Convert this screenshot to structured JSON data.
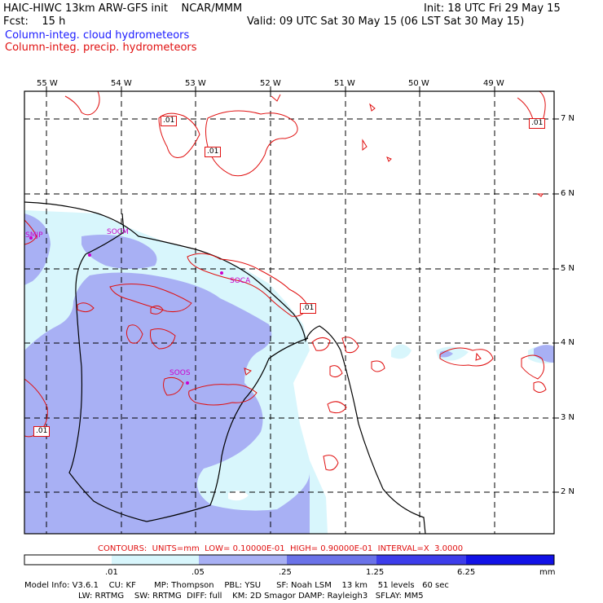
{
  "header": {
    "title": "HAIC-HIWC 13km ARW-GFS init    NCAR/MMM",
    "init": "Init: 18 UTC Fri 29 May 15",
    "fcst": "Fcst:    15 h",
    "valid": "Valid: 09 UTC Sat 30 May 15 (06 LST Sat 30 May 15)",
    "legend_cloud": "Column-integ. cloud hydrometeors",
    "legend_precip": "Column-integ. precip. hydrometeors"
  },
  "map": {
    "lon_labels": [
      "55 W",
      "54 W",
      "53 W",
      "52 W",
      "51 W",
      "50 W",
      "49 W"
    ],
    "lat_labels": [
      "7 N",
      "6 N",
      "5 N",
      "4 N",
      "3 N",
      "2 N"
    ],
    "stations": [
      "SMJP",
      "SOCM",
      "SOCA",
      "SOOS"
    ],
    "contour_labels": [
      ".01",
      ".01",
      ".01",
      ".01",
      ".01"
    ]
  },
  "colorbar": {
    "contours_line": "CONTOURS:  UNITS=mm  LOW= 0.10000E-01  HIGH= 0.90000E-01  INTERVAL=X  3.0000",
    "ticks": [
      ".01",
      ".05",
      ".25",
      "1.25",
      "6.25"
    ],
    "unit": "mm",
    "colors": [
      "#ffffff",
      "#d8f6fc",
      "#a8b0f4",
      "#6a72e8",
      "#3d3dea",
      "#1212e6"
    ]
  },
  "footer": {
    "line1": "Model Info: V3.6.1    CU: KF       MP: Thompson    PBL: YSU      SF: Noah LSM    13 km    51 levels   60 sec",
    "line2": "LW: RRTMG    SW: RRTMG  DIFF: full    KM: 2D Smagor DAMP: Rayleigh3   SFLAY: MM5"
  }
}
